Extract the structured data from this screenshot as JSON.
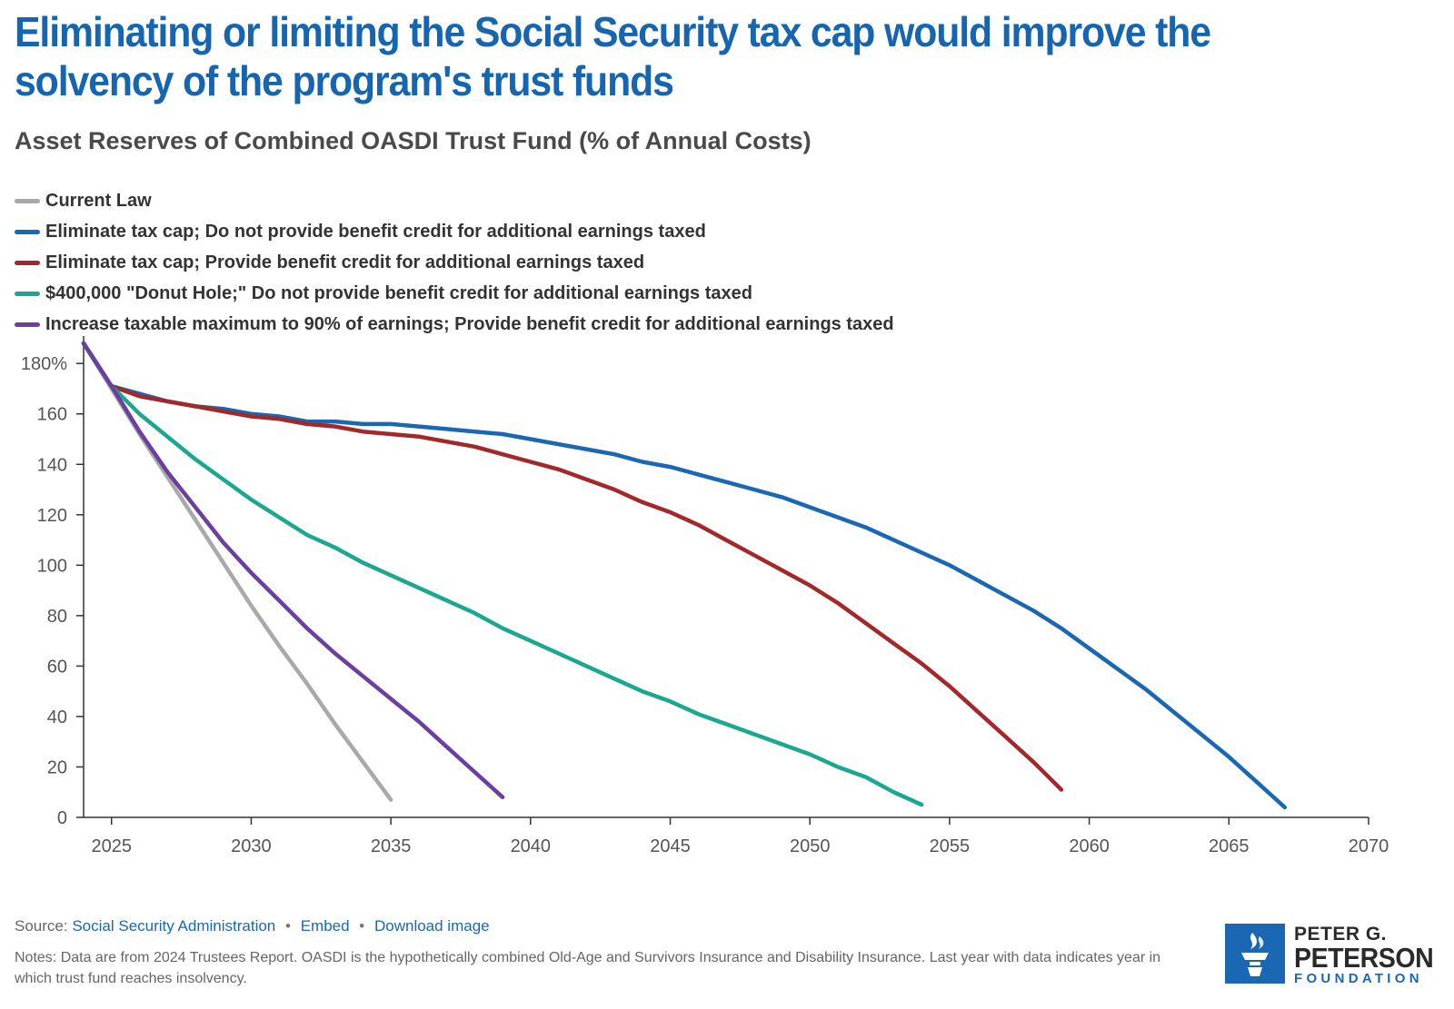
{
  "header": {
    "title": "Eliminating or limiting the Social Security tax cap would improve the solvency of the program's trust funds",
    "subtitle": "Asset Reserves of Combined OASDI Trust Fund (% of Annual Costs)"
  },
  "legend": [
    {
      "label": "Current Law",
      "color": "#a9a9a9"
    },
    {
      "label": "Eliminate tax cap; Do not provide benefit credit for additional earnings taxed",
      "color": "#1a67b3"
    },
    {
      "label": "Eliminate tax cap; Provide benefit credit for additional earnings taxed",
      "color": "#a3282a"
    },
    {
      "label": "$400,000 \"Donut Hole;\" Do not provide benefit credit for additional earnings taxed",
      "color": "#1aa88f"
    },
    {
      "label": "Increase taxable maximum to 90% of earnings; Provide benefit credit for additional earnings taxed",
      "color": "#6a3fa0"
    }
  ],
  "chart_data": {
    "type": "line",
    "title": "Asset Reserves of Combined OASDI Trust Fund (% of Annual Costs)",
    "xlabel": "",
    "ylabel": "",
    "xlim": [
      2024,
      2070
    ],
    "ylim": [
      0,
      188
    ],
    "x_ticks": [
      2025,
      2030,
      2035,
      2040,
      2045,
      2050,
      2055,
      2060,
      2065,
      2070
    ],
    "y_ticks": [
      0,
      20,
      40,
      60,
      80,
      100,
      120,
      140,
      160,
      180
    ],
    "y_tick_labels": [
      "0",
      "20",
      "40",
      "60",
      "80",
      "100",
      "120",
      "140",
      "160",
      "180%"
    ],
    "grid": false,
    "series": [
      {
        "name": "Current Law",
        "color": "#a9a9a9",
        "x": [
          2024,
          2025,
          2026,
          2027,
          2028,
          2029,
          2030,
          2031,
          2032,
          2033,
          2034,
          2035
        ],
        "values": [
          188,
          170,
          152,
          135,
          118,
          101,
          84,
          68,
          53,
          37,
          22,
          7
        ]
      },
      {
        "name": "Eliminate tax cap; Do not provide benefit credit for additional earnings taxed",
        "color": "#1a67b3",
        "x": [
          2024,
          2025,
          2026,
          2027,
          2028,
          2029,
          2030,
          2031,
          2032,
          2033,
          2034,
          2035,
          2036,
          2037,
          2038,
          2039,
          2040,
          2041,
          2042,
          2043,
          2044,
          2045,
          2046,
          2047,
          2048,
          2049,
          2050,
          2051,
          2052,
          2053,
          2054,
          2055,
          2056,
          2057,
          2058,
          2059,
          2060,
          2061,
          2062,
          2063,
          2064,
          2065,
          2066,
          2067
        ],
        "values": [
          188,
          171,
          168,
          165,
          163,
          162,
          160,
          159,
          157,
          157,
          156,
          156,
          155,
          154,
          153,
          152,
          150,
          148,
          146,
          144,
          141,
          139,
          136,
          133,
          130,
          127,
          123,
          119,
          115,
          110,
          105,
          100,
          94,
          88,
          82,
          75,
          67,
          59,
          51,
          42,
          33,
          24,
          14,
          4
        ]
      },
      {
        "name": "Eliminate tax cap; Provide benefit credit for additional earnings taxed",
        "color": "#a3282a",
        "x": [
          2024,
          2025,
          2026,
          2027,
          2028,
          2029,
          2030,
          2031,
          2032,
          2033,
          2034,
          2035,
          2036,
          2037,
          2038,
          2039,
          2040,
          2041,
          2042,
          2043,
          2044,
          2045,
          2046,
          2047,
          2048,
          2049,
          2050,
          2051,
          2052,
          2053,
          2054,
          2055,
          2056,
          2057,
          2058,
          2059
        ],
        "values": [
          188,
          171,
          167,
          165,
          163,
          161,
          159,
          158,
          156,
          155,
          153,
          152,
          151,
          149,
          147,
          144,
          141,
          138,
          134,
          130,
          125,
          121,
          116,
          110,
          104,
          98,
          92,
          85,
          77,
          69,
          61,
          52,
          42,
          32,
          22,
          11
        ]
      },
      {
        "name": "$400,000 \"Donut Hole;\" Do not provide benefit credit for additional earnings taxed",
        "color": "#1aa88f",
        "x": [
          2024,
          2025,
          2026,
          2027,
          2028,
          2029,
          2030,
          2031,
          2032,
          2033,
          2034,
          2035,
          2036,
          2037,
          2038,
          2039,
          2040,
          2041,
          2042,
          2043,
          2044,
          2045,
          2046,
          2047,
          2048,
          2049,
          2050,
          2051,
          2052,
          2053,
          2054
        ],
        "values": [
          188,
          171,
          160,
          151,
          142,
          134,
          126,
          119,
          112,
          107,
          101,
          96,
          91,
          86,
          81,
          75,
          70,
          65,
          60,
          55,
          50,
          46,
          41,
          37,
          33,
          29,
          25,
          20,
          16,
          10,
          5
        ]
      },
      {
        "name": "Increase taxable maximum to 90% of earnings; Provide benefit credit for additional earnings taxed",
        "color": "#6a3fa0",
        "x": [
          2024,
          2025,
          2026,
          2027,
          2028,
          2029,
          2030,
          2031,
          2032,
          2033,
          2034,
          2035,
          2036,
          2037,
          2038,
          2039
        ],
        "values": [
          188,
          171,
          153,
          137,
          123,
          109,
          97,
          86,
          75,
          65,
          56,
          47,
          38,
          28,
          18,
          8
        ]
      }
    ]
  },
  "footer": {
    "source_label": "Source:",
    "source_link": "Social Security Administration",
    "embed_label": "Embed",
    "download_label": "Download image",
    "separator": "•",
    "notes": "Notes: Data are from 2024 Trustees Report. OASDI is the hypothetically combined Old-Age and Survivors Insurance and Disability Insurance. Last year with data indicates year in which trust fund reaches insolvency."
  },
  "logo": {
    "line1": "PETER G.",
    "line2": "PETERSON",
    "line3": "FOUNDATION",
    "color": "#1a67b3"
  }
}
